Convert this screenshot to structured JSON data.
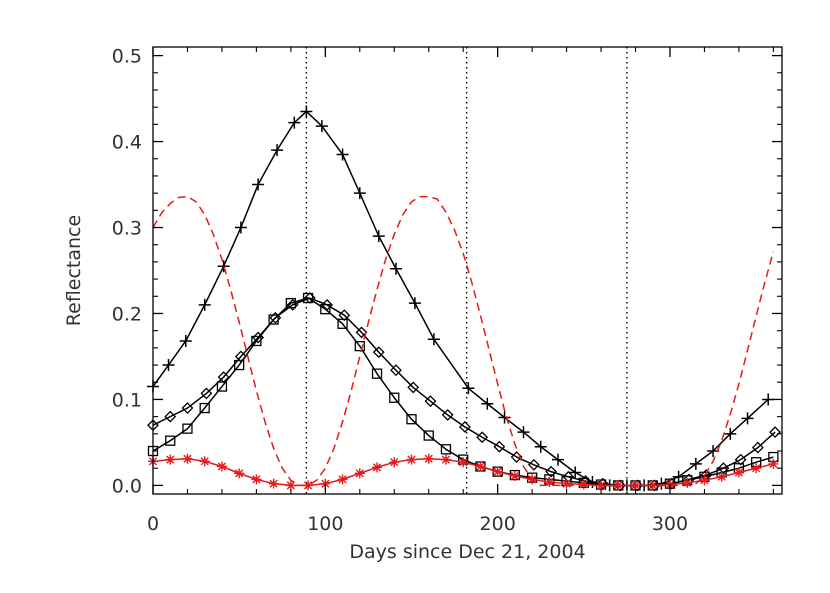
{
  "chart_data": {
    "type": "line",
    "xlabel": "Days since Dec 21, 2004",
    "ylabel": "Reflectance",
    "xlim": [
      0,
      365
    ],
    "ylim": [
      -0.01,
      0.51
    ],
    "x_ticks": [
      0,
      100,
      200,
      300
    ],
    "x_tick_labels": [
      "0",
      "100",
      "200",
      "300"
    ],
    "y_ticks": [
      0.0,
      0.1,
      0.2,
      0.3,
      0.4,
      0.5
    ],
    "y_tick_labels": [
      "0.0",
      "0.1",
      "0.2",
      "0.3",
      "0.4",
      "0.5"
    ],
    "vertical_reference_lines": [
      89,
      182,
      275
    ],
    "series": [
      {
        "marker": "plus",
        "color": "#000000",
        "line": "solid",
        "x": [
          0,
          9,
          19,
          30,
          41,
          51,
          61,
          72,
          82,
          89,
          98,
          110,
          120,
          131,
          141,
          152,
          163,
          183,
          194,
          204,
          215,
          225,
          235,
          245,
          255,
          265,
          275,
          285,
          295,
          305,
          315,
          325,
          335,
          345,
          357
        ],
        "y": [
          0.115,
          0.14,
          0.168,
          0.21,
          0.255,
          0.3,
          0.35,
          0.39,
          0.422,
          0.435,
          0.418,
          0.385,
          0.34,
          0.29,
          0.252,
          0.212,
          0.17,
          0.113,
          0.095,
          0.079,
          0.062,
          0.045,
          0.03,
          0.015,
          0.004,
          0.0,
          0.0,
          0.0,
          0.002,
          0.01,
          0.025,
          0.04,
          0.06,
          0.078,
          0.1
        ]
      },
      {
        "marker": "diamond",
        "color": "#000000",
        "line": "solid",
        "x": [
          0,
          10,
          20,
          31,
          41,
          51,
          61,
          71,
          81,
          91,
          101,
          111,
          121,
          131,
          141,
          151,
          161,
          171,
          181,
          191,
          201,
          211,
          221,
          231,
          241,
          251,
          261,
          271,
          281,
          291,
          301,
          311,
          321,
          331,
          341,
          351,
          361
        ],
        "y": [
          0.07,
          0.08,
          0.09,
          0.107,
          0.126,
          0.15,
          0.172,
          0.195,
          0.21,
          0.218,
          0.21,
          0.198,
          0.178,
          0.155,
          0.134,
          0.114,
          0.098,
          0.082,
          0.068,
          0.056,
          0.045,
          0.033,
          0.024,
          0.016,
          0.01,
          0.005,
          0.002,
          0.0,
          0.0,
          0.0,
          0.002,
          0.007,
          0.012,
          0.02,
          0.03,
          0.044,
          0.062
        ]
      },
      {
        "marker": "square",
        "color": "#000000",
        "line": "solid",
        "x": [
          0,
          10,
          20,
          30,
          40,
          50,
          60,
          70,
          80,
          90,
          100,
          110,
          120,
          130,
          140,
          150,
          160,
          170,
          180,
          190,
          200,
          210,
          220,
          230,
          240,
          250,
          260,
          270,
          280,
          290,
          300,
          310,
          320,
          330,
          340,
          350,
          360
        ],
        "y": [
          0.04,
          0.052,
          0.066,
          0.09,
          0.115,
          0.14,
          0.168,
          0.193,
          0.212,
          0.218,
          0.205,
          0.188,
          0.162,
          0.13,
          0.102,
          0.077,
          0.058,
          0.042,
          0.03,
          0.022,
          0.016,
          0.012,
          0.009,
          0.007,
          0.005,
          0.003,
          0.001,
          0.0,
          0.0,
          0.0,
          0.002,
          0.006,
          0.01,
          0.015,
          0.02,
          0.027,
          0.033
        ]
      },
      {
        "marker": "asterisk",
        "color": "#e41a1c",
        "line": "solid",
        "x": [
          0,
          10,
          20,
          30,
          40,
          50,
          60,
          70,
          80,
          90,
          100,
          110,
          120,
          130,
          140,
          150,
          160,
          170,
          180,
          190,
          200,
          210,
          220,
          230,
          240,
          250,
          260,
          270,
          280,
          290,
          300,
          310,
          320,
          330,
          340,
          350,
          360
        ],
        "y": [
          0.028,
          0.03,
          0.031,
          0.028,
          0.022,
          0.014,
          0.007,
          0.002,
          0.0,
          0.0,
          0.002,
          0.007,
          0.014,
          0.021,
          0.027,
          0.03,
          0.031,
          0.03,
          0.027,
          0.022,
          0.016,
          0.011,
          0.007,
          0.004,
          0.002,
          0.001,
          0.0,
          0.0,
          0.0,
          0.0,
          0.001,
          0.003,
          0.006,
          0.01,
          0.015,
          0.02,
          0.025
        ]
      },
      {
        "marker": "none",
        "color": "#e41a1c",
        "line": "dashed",
        "x": [
          0,
          5,
          10,
          15,
          20,
          25,
          30,
          35,
          40,
          45,
          50,
          55,
          60,
          65,
          70,
          75,
          80,
          85,
          90,
          95,
          100,
          105,
          110,
          115,
          120,
          125,
          130,
          135,
          140,
          145,
          150,
          155,
          160,
          165,
          170,
          175,
          180,
          185,
          190,
          195,
          200,
          205,
          210,
          215,
          220,
          225,
          230,
          235,
          240,
          245,
          250,
          255,
          260,
          265,
          270,
          275,
          280,
          285,
          290,
          295,
          300,
          305,
          310,
          315,
          320,
          325,
          330,
          335,
          340,
          345,
          350,
          355,
          360
        ],
        "y": [
          0.3,
          0.317,
          0.328,
          0.335,
          0.336,
          0.33,
          0.315,
          0.292,
          0.263,
          0.228,
          0.19,
          0.15,
          0.11,
          0.074,
          0.043,
          0.02,
          0.006,
          0.0,
          0.0,
          0.006,
          0.02,
          0.043,
          0.074,
          0.11,
          0.15,
          0.19,
          0.228,
          0.263,
          0.292,
          0.315,
          0.33,
          0.336,
          0.336,
          0.333,
          0.318,
          0.297,
          0.27,
          0.236,
          0.198,
          0.158,
          0.118,
          0.08,
          0.048,
          0.022,
          0.007,
          0.0,
          0.0,
          0.0,
          0.0,
          0.0,
          0.0,
          0.0,
          0.0,
          0.0,
          0.0,
          0.0,
          0.0,
          0.0,
          0.0,
          0.0,
          0.0,
          0.0,
          0.0,
          0.002,
          0.011,
          0.028,
          0.052,
          0.083,
          0.118,
          0.157,
          0.197,
          0.236,
          0.272
        ]
      }
    ]
  }
}
